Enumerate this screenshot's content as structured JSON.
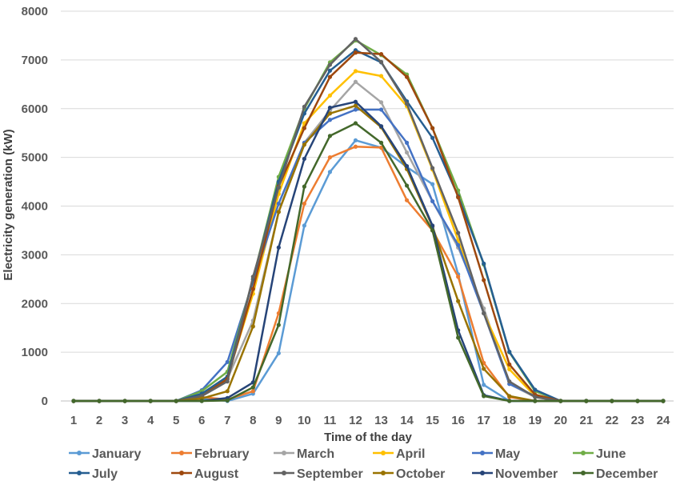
{
  "chart_data": {
    "type": "line",
    "xlabel": "Time of the day",
    "ylabel": "Electricity generation (kW)",
    "x": [
      1,
      2,
      3,
      4,
      5,
      6,
      7,
      8,
      9,
      10,
      11,
      12,
      13,
      14,
      15,
      16,
      17,
      18,
      19,
      20,
      21,
      22,
      23,
      24
    ],
    "ylim": [
      0,
      8000
    ],
    "yticks": [
      0,
      1000,
      2000,
      3000,
      4000,
      5000,
      6000,
      7000,
      8000
    ],
    "grid": true,
    "legend_position": "bottom",
    "series": [
      {
        "name": "January",
        "color": "#5b9bd5",
        "values": [
          0,
          0,
          0,
          0,
          0,
          50,
          0,
          150,
          980,
          3600,
          4700,
          5350,
          5200,
          4800,
          4450,
          2600,
          330,
          0,
          0,
          0,
          0,
          0,
          0,
          0
        ]
      },
      {
        "name": "February",
        "color": "#ed7d31",
        "values": [
          0,
          0,
          0,
          0,
          0,
          80,
          30,
          200,
          1800,
          4050,
          5000,
          5220,
          5200,
          4120,
          3500,
          2550,
          780,
          80,
          0,
          0,
          0,
          0,
          0,
          0
        ]
      },
      {
        "name": "March",
        "color": "#a5a5a5",
        "values": [
          0,
          0,
          0,
          0,
          0,
          120,
          460,
          1650,
          3880,
          5300,
          5960,
          6550,
          6130,
          5100,
          4100,
          3150,
          1900,
          350,
          80,
          0,
          0,
          0,
          0,
          0
        ]
      },
      {
        "name": "April",
        "color": "#ffc000",
        "values": [
          0,
          0,
          0,
          0,
          0,
          120,
          500,
          2200,
          4250,
          5700,
          6270,
          6770,
          6670,
          6050,
          4750,
          3300,
          1800,
          650,
          100,
          0,
          0,
          0,
          0,
          0
        ]
      },
      {
        "name": "May",
        "color": "#4472c4",
        "values": [
          0,
          0,
          0,
          0,
          0,
          220,
          800,
          2450,
          4050,
          5300,
          5770,
          5980,
          5980,
          5300,
          4100,
          3200,
          1800,
          350,
          100,
          0,
          0,
          0,
          0,
          0
        ]
      },
      {
        "name": "June",
        "color": "#70ad47",
        "values": [
          0,
          0,
          0,
          0,
          0,
          200,
          600,
          2500,
          4600,
          6000,
          6950,
          7400,
          7100,
          6700,
          5600,
          4320,
          2800,
          1000,
          200,
          0,
          0,
          0,
          0,
          0
        ]
      },
      {
        "name": "July",
        "color": "#255e91",
        "values": [
          0,
          0,
          0,
          0,
          0,
          150,
          500,
          2500,
          4500,
          5900,
          6780,
          7200,
          6950,
          6150,
          5400,
          4200,
          2820,
          1010,
          230,
          0,
          0,
          0,
          0,
          0
        ]
      },
      {
        "name": "August",
        "color": "#9e480e",
        "values": [
          0,
          0,
          0,
          0,
          0,
          100,
          450,
          2300,
          4400,
          5600,
          6650,
          7150,
          7120,
          6650,
          5600,
          4180,
          2480,
          750,
          130,
          0,
          0,
          0,
          0,
          0
        ]
      },
      {
        "name": "September",
        "color": "#636363",
        "values": [
          0,
          0,
          0,
          0,
          0,
          100,
          400,
          2550,
          4380,
          6040,
          6900,
          7430,
          6960,
          6100,
          4780,
          3450,
          1800,
          400,
          80,
          0,
          0,
          0,
          0,
          0
        ]
      },
      {
        "name": "October",
        "color": "#997300",
        "values": [
          0,
          0,
          0,
          0,
          0,
          50,
          200,
          1530,
          3880,
          5260,
          5900,
          6060,
          5620,
          4760,
          3580,
          2050,
          660,
          100,
          0,
          0,
          0,
          0,
          0,
          0
        ]
      },
      {
        "name": "November",
        "color": "#264478",
        "values": [
          0,
          0,
          0,
          0,
          0,
          0,
          60,
          380,
          3150,
          4970,
          6020,
          6140,
          5640,
          4820,
          3600,
          1450,
          120,
          0,
          0,
          0,
          0,
          0,
          0,
          0
        ]
      },
      {
        "name": "December",
        "color": "#43682b",
        "values": [
          0,
          0,
          0,
          0,
          0,
          0,
          10,
          280,
          1560,
          4400,
          5440,
          5700,
          5300,
          4420,
          3500,
          1300,
          100,
          0,
          0,
          0,
          0,
          0,
          0,
          0
        ]
      }
    ]
  }
}
